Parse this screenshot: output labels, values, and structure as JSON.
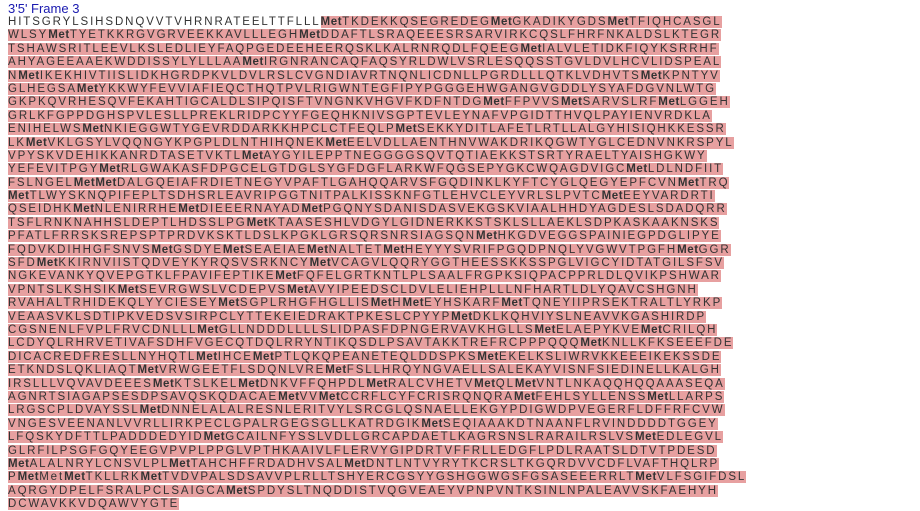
{
  "frame": {
    "title": "3'5' Frame 3"
  },
  "orf_color": "#e7a0a0",
  "lines": [
    "HITSGRYLSIHSDNQVVTVHRNRATEELTTFLLL{Met}TKDEKKQSEGREDEG{Met}GKADIKYGDS{Met}TFIQHCASGL",
    "WLSY{Met}TYETKKRGVGRVEEKKAVLLLEGH{Met}DDAFTLSRAQEEESRSARVIRKCQSLFHRFNKALDSLKTEGR",
    "TSHAWSRITLEEVLKSLEDLIEYFAQPGEDEEHEERQSKLKALRNRQDLFQEEG{Met}IALVLETIDKFIQYKSRRHF",
    "AHYAGEEAAEKWDDISSYLYLLLAA{Met}IRGNRANCAQFAQSYRLDWLVSRLESQQSSTGVLDVLHCVLIDSPEAL",
    "N{Met}IKEKHIVTIISLIDKHGRDPKVLDVLRSLCVGNDIAVRTNQNLICDNLLPGRDLLLQTKLVDHVTS{Met}KPNTYV",
    "GLHEGSA{Met}YKKWYFEVVIAFIEQCTHQTPVLRIGWNTEGFIPYPGGGEHWGANGVGDDLYSYAFDGVNLWTG",
    "GKPKQVRHESQVFEKAHTIGCALDLSIPQISFTVNGNKVHGVFKDFNTDG{Met}FFPVVS{Met}SARVSLRF{Met}LGGEH",
    "GRLKFGPPDGHSPVLESLLPREKLRIDPCYYFGEQHKNIVSGPTEVLEYNAFVPGIDTTHVQLPAYIENVRDKLA",
    "ENIHELWS{Met}NKIEGGWTYGEVRDDARKKHPCLCTFEQLP{Met}SEKKYDITLAFETLRTLLALGYHISIQHKKESSR",
    "LK{Met}VKLGSYLVQQNGYKPGPLDLNTHIHQNEK{Met}EELVDLLAENTHNVWAKDRIKQGWTYGLCEDNVNKRSPYL",
    "VPYSKVDEHIKKANRDTASETVKTL{Met}AYGYILEPPTNEGGGGSQVTQTIAEKKSTSRTYRAELTYAISHGKWY",
    "YEFEVITPGY{Met}RLGWAKASFDPGCELGTDGLSYGFDGFLARKWFQGSEPYGKCWQAGDVIGC{Met}LDLNDFIIT",
    "FSLNGEL{Met}{Met}DALGQEIAFRDIETNEGYVPAFTLGAHQQARVSFGQDINKLKYFTCYGLQEGYEPFCVN{Met}TRQ",
    "{Met}TLWYSKNQPIFEPLTSDHSRLEAVRIPGGTNITPALKISSKNFGTLEHVCLEYVRLSLPVTC{Met}EEYVARDRTI",
    "QSEIDHK{Met}NLENIRRHE{Met}DIEEERNAYAD{Met}PGQNYSDANISDASVEKGSKVIAALHHDYAGDESLSDADQRR",
    "TSFLRNKNAHHSLDEPTLHDSSLPG{Met}KTAASESHLVDGYLGIDNERKKSTSKLSLLAEKLSDPKASKAAKNSKS",
    "PFATLFRRSKSREPSPTPRDVKSKTLDSLKPGKLGRSQRSNRSIAGSQN{Met}HKGDVEGGSPAINIEGPDGLIPYE",
    "FQDVKDIHHGFSNVS{Met}GSDYE{Met}SEAEIAE{Met}NALTET{Met}HEYYYSVRIFPGQDPNQLYVGWVTPGFH{Met}GGR",
    "SFD{Met}KKIRNVIISTQDVEYKYRQSVSRKNCY{Met}VCAGVLQQRYGGTHEESSKKSSPGLVIGCYIDTATGILSFSV",
    "NGKEVANKYQVEPGTKLFPAVIFEPTIKE{Met}FQFELGRTKNTLPLSAALFRGPKSIQPACPPRLDLQVIKPSHWAR",
    "VPNTSLKSHSIK{Met}SEVRGWSLVCDEPVS{Met}AVYIPEEDSCLDVLELIEHPLLLNFHARTLDLYQAVCSHGNH",
    "RVAHALTRHIDEKQLYYCIESEY{Met}SGPLRHGFHGLLIS{Met}H{Met}EYHSKARF{Met}TQNEYIIPRSEKTRALTLYRKP",
    "VEAASVKLSDTIPKVEDSVSIRPCLYTTEKEIEDRAKTPKESLCPYYP{Met}DKLKQHVIYSLNEAVVKGASHIRDP",
    "CGSNENLFVPLFRVCDNLLL{Met}GLLNDDDLLLLSLIDPASFDPNGERVAVKHGLLS{Met}ELAEPYKVE{Met}CRILQH",
    "LCDYQLRHRVETIVAFSDHFVGECQTDQLRRYNTIKQSDLPSAVTAKKTREFRCPPPQQQ{Met}KNLLKFKSEEEFDE",
    "DICACREDFRESLLNYHQTL{Met}IHCE{Met}PTLQKQPEANETEQLDDSPKS{Met}EKELKSLIWRVKKEEEIKEKSSDE",
    "ETKNDSLQKLIAQT{Met}VRWGEETFLSDQNLVRE{Met}FSLLHRQYNGVAELLSALEKAYVISNFSIEDINELLKALGH",
    "IRSLLLVQVAVDEEES{Met}KTSLKEL{Met}DNKVFFQHPDL{Met}RALCVHETV{Met}QL{Met}VNTLNKAQQHQQAAASEQA",
    "AGNRTSIAGAPSESDPSAVQSKQDACAE{Met}VV{Met}CCRFLCYFCRISRQNQRA{Met}FEHLSYLLENSS{Met}LLARPS",
    "LRGSCPLDVAYSSL{Met}DNNELALALRESNLERITVYLSRCGLQSNAELLEKGYPDIGWDPVEGERFLDFFRFCVW",
    "VNGESVEENANLVVRLLIRKPECLGPALRGEGSGLLKATRDGIK{Met}SEQIAAAKDTNAANFLRVINDDDDTGGEY",
    "LFQSKYDFTTLPADDDEDYID{Met}GCAILNFYSSLVDLLGRCAPDAETLKAGRSNSLRARAILRSLVS{Met}EDLEGVL",
    "GLRFILPSGFGQYEEGVPVPLPPGLVPTHKAAIVLFLERVYGIPDRTVFFRLLEDGFLPDLRAATSLDTVTPDESD",
    "{Met}ALALNRYLCNSVLPL{Met}TAHCHFFRDADHVSAL{Met}DNTLNTVYRYTKCRSLTKGQRDVVCDFLVAFTHQLRP",
    "P{Met}Met{Met}TKLLRK{Met}TVDVPALSDSAVVPLRLLTSHYERCGSYYGSHGGWGSFGSASEEERRLT{Met}VLFSGIFDSL",
    "AQRGYDPELFSRALPCLSAIGCA{Met}SPDYSLTNQDDISTVQGVEAEYVPNPVNTKSINLNPALEAVVSKFAEHYH",
    "DCWAVKKVDQAWVYGTE"
  ]
}
